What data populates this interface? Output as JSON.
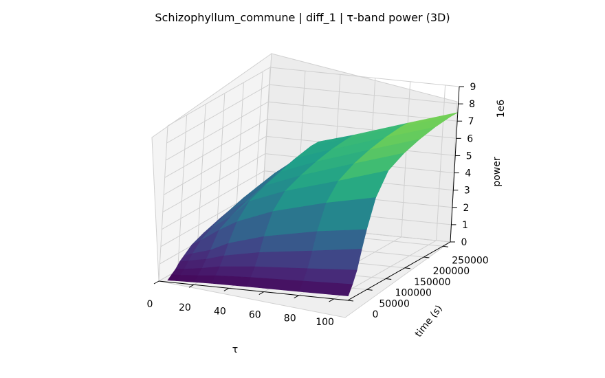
{
  "chart_data": {
    "type": "surface3d",
    "title": "Schizophyllum_commune | diff_1 | τ-band power (3D)",
    "xlabel": "τ",
    "ylabel": "time (s)",
    "zlabel": "power",
    "z_offset_label": "1e6",
    "colormap": "viridis",
    "xlim": [
      0,
      108
    ],
    "ylim": [
      0,
      270000
    ],
    "zlim": [
      0,
      9
    ],
    "x_ticks": [
      0,
      20,
      40,
      60,
      80,
      100
    ],
    "y_ticks": [
      0,
      50000,
      100000,
      150000,
      200000,
      250000
    ],
    "z_ticks": [
      0,
      1,
      2,
      3,
      4,
      5,
      6,
      7,
      8,
      9
    ],
    "tau": [
      5,
      10,
      20,
      30,
      50,
      80,
      108
    ],
    "time": [
      0,
      10000,
      20000,
      30000,
      40000,
      60000,
      90000,
      130000,
      170000,
      210000,
      250000,
      270000
    ],
    "power_1e6": [
      [
        0.1,
        0.3,
        0.5,
        0.8,
        1.0,
        1.4,
        1.7,
        2.0,
        2.2,
        2.4,
        2.5,
        2.5
      ],
      [
        0.12,
        0.32,
        0.55,
        0.9,
        1.2,
        1.7,
        2.1,
        2.5,
        2.8,
        3.0,
        3.2,
        3.2
      ],
      [
        0.15,
        0.4,
        0.7,
        1.1,
        1.5,
        2.4,
        2.8,
        3.2,
        3.5,
        3.8,
        4.0,
        4.0
      ],
      [
        0.18,
        0.5,
        0.9,
        1.4,
        2.0,
        3.0,
        3.8,
        4.2,
        4.5,
        4.8,
        5.0,
        5.0
      ],
      [
        0.2,
        0.6,
        1.1,
        1.8,
        2.6,
        3.8,
        4.6,
        5.0,
        5.3,
        5.5,
        5.6,
        5.6
      ],
      [
        0.22,
        0.7,
        1.3,
        2.2,
        3.2,
        4.6,
        5.5,
        6.0,
        6.3,
        6.5,
        6.6,
        6.6
      ],
      [
        0.25,
        0.8,
        1.5,
        2.6,
        3.6,
        5.2,
        6.4,
        6.9,
        7.2,
        7.4,
        7.5,
        7.5
      ]
    ]
  }
}
